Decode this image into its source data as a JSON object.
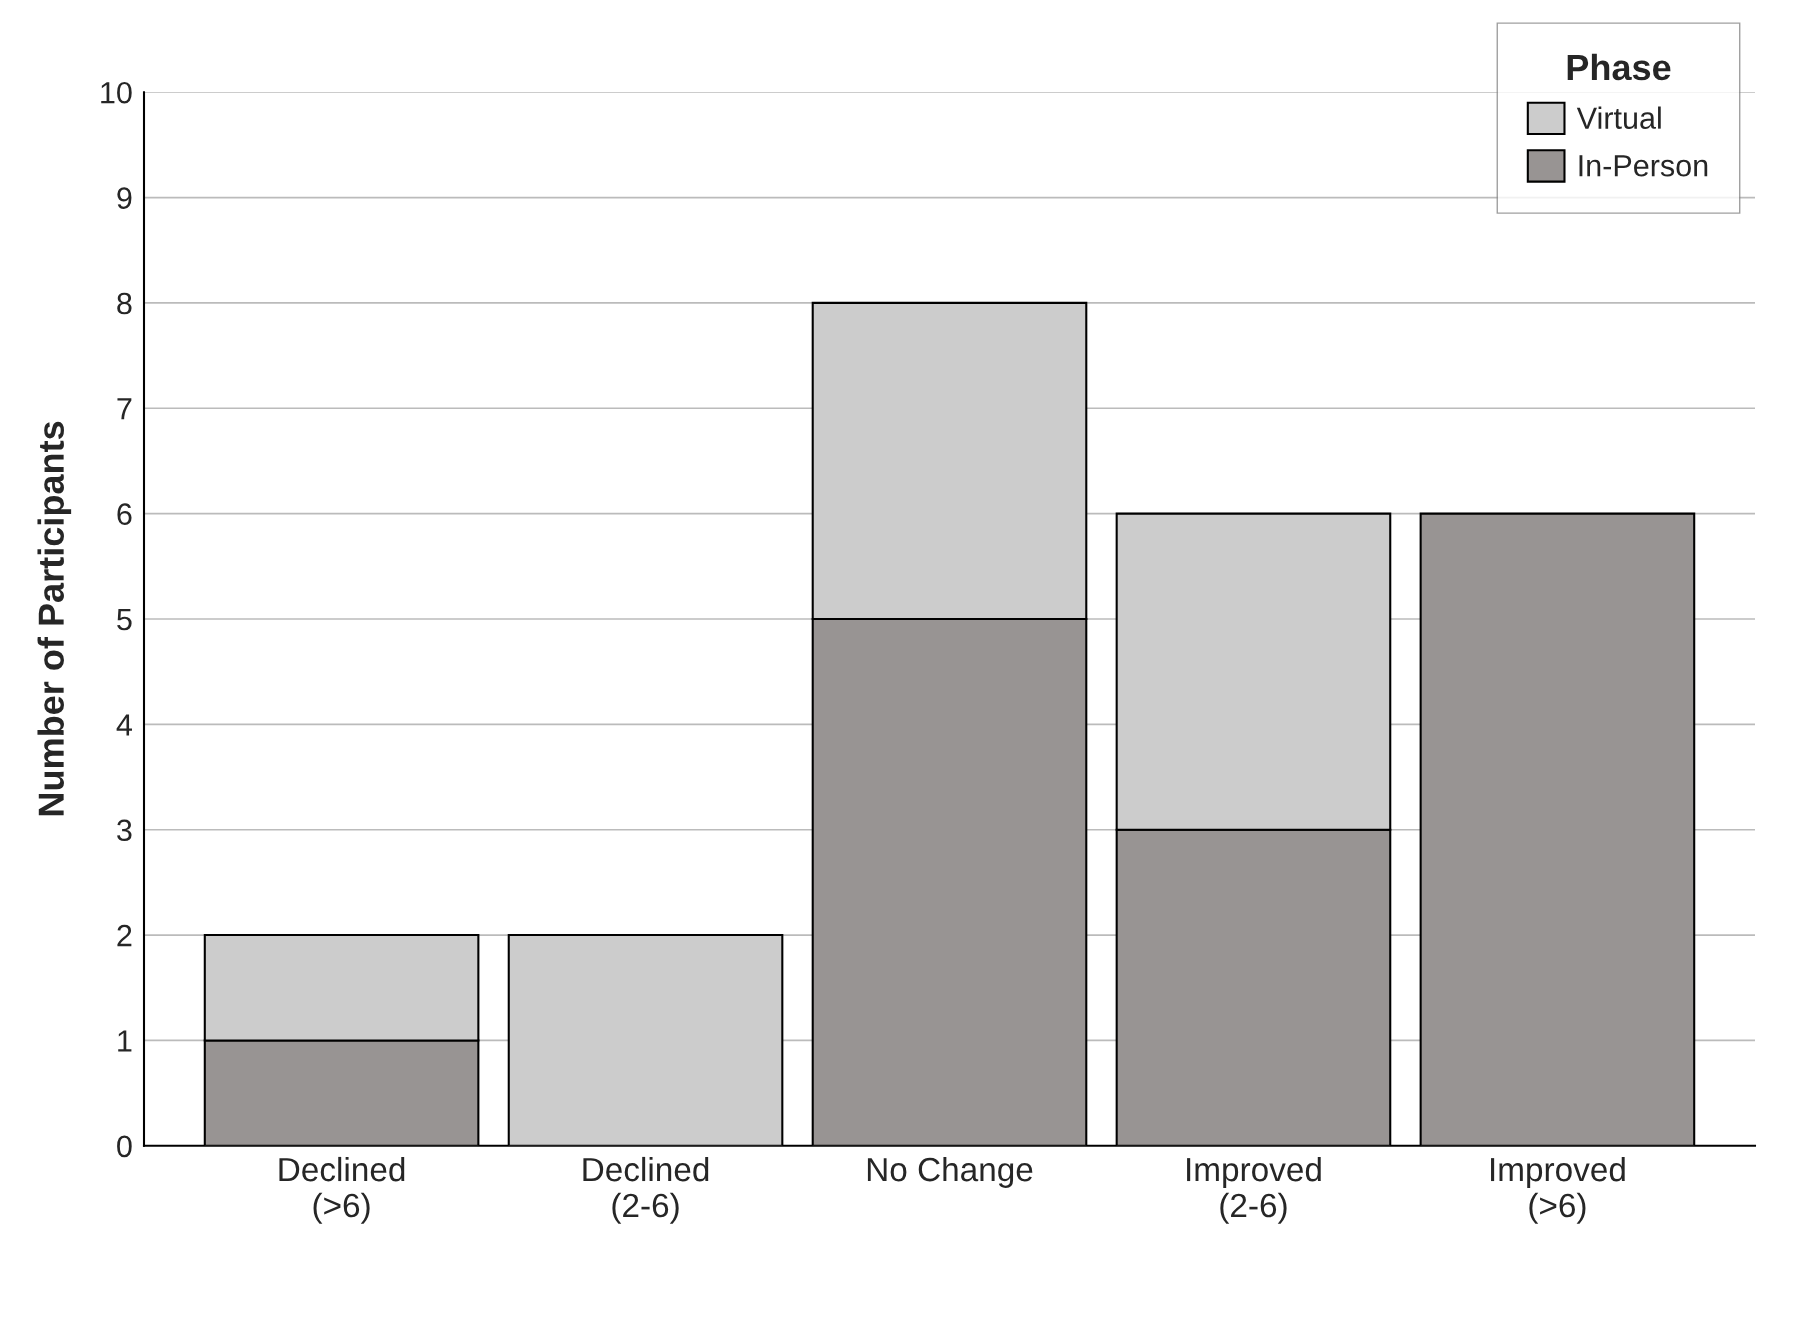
{
  "chart_data": {
    "type": "bar",
    "stacked": true,
    "ylabel": "Number of Participants",
    "legend_title": "Phase",
    "categories": [
      "Declined\n(>6)",
      "Declined\n(2-6)",
      "No Change",
      "Improved\n(2-6)",
      "Improved\n(>6)"
    ],
    "series": [
      {
        "name": "In-Person",
        "color": "#989493",
        "values": [
          1,
          null,
          5,
          3,
          6
        ]
      },
      {
        "name": "Virtual",
        "color": "#cccccc",
        "values": [
          1,
          2,
          3,
          3,
          null
        ]
      }
    ],
    "ylim": [
      0,
      10
    ],
    "yticks": [
      0,
      1,
      2,
      3,
      4,
      5,
      6,
      7,
      8,
      9,
      10
    ],
    "grid": "y",
    "legend": "top right"
  }
}
